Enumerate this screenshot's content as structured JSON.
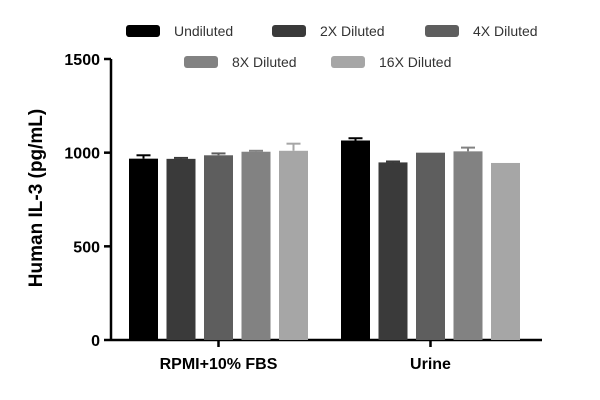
{
  "chart_data": {
    "type": "bar",
    "title": "",
    "xlabel": "",
    "ylabel": "Human IL-3 (pg/mL)",
    "ylim": [
      0,
      1500
    ],
    "yticks": [
      0,
      500,
      1000,
      1500
    ],
    "grid": false,
    "legend_position": "top",
    "categories": [
      "RPMI+10% FBS",
      "Urine"
    ],
    "series": [
      {
        "name": "Undiluted",
        "color": "#000000",
        "values": [
          968,
          1065
        ],
        "errors": [
          18,
          12
        ]
      },
      {
        "name": "2X Diluted",
        "color": "#3a3a3a",
        "values": [
          967,
          948
        ],
        "errors": [
          5,
          5
        ]
      },
      {
        "name": "4X Diluted",
        "color": "#5e5e5e",
        "values": [
          986,
          1000
        ],
        "errors": [
          10,
          0
        ]
      },
      {
        "name": "8X Diluted",
        "color": "#828282",
        "values": [
          1005,
          1007
        ],
        "errors": [
          5,
          20
        ]
      },
      {
        "name": "16X Diluted",
        "color": "#a6a6a6",
        "values": [
          1010,
          945
        ],
        "errors": [
          38,
          0
        ]
      }
    ]
  }
}
